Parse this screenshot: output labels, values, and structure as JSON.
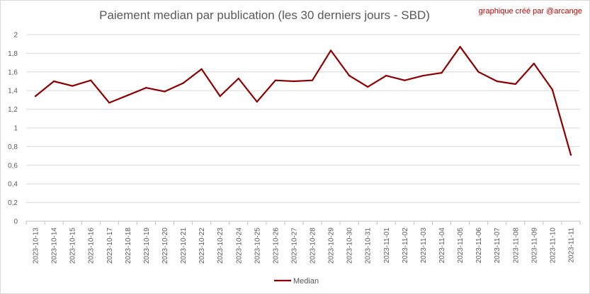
{
  "chart_data": {
    "type": "line",
    "title": "Paiement median par publication (les 30 derniers jours - SBD)",
    "credit": "graphique créé par @arcange",
    "xlabel": "",
    "ylabel": "",
    "ylim": [
      0,
      2
    ],
    "y_ticks": [
      "0",
      "0,2",
      "0,4",
      "0,6",
      "0,8",
      "1",
      "1,2",
      "1,4",
      "1,6",
      "1,8",
      "2"
    ],
    "y_tick_values": [
      0,
      0.2,
      0.4,
      0.6,
      0.8,
      1.0,
      1.2,
      1.4,
      1.6,
      1.8,
      2.0
    ],
    "grid": true,
    "legend": "bottom",
    "color": "#8b0000",
    "categories": [
      "2023-10-13",
      "2023-10-14",
      "2023-10-15",
      "2023-10-16",
      "2023-10-17",
      "2023-10-18",
      "2023-10-19",
      "2023-10-20",
      "2023-10-21",
      "2023-10-22",
      "2023-10-23",
      "2023-10-24",
      "2023-10-25",
      "2023-10-26",
      "2023-10-27",
      "2023-10-28",
      "2023-10-29",
      "2023-10-30",
      "2023-10-31",
      "2023-11-01",
      "2023-11-02",
      "2023-11-03",
      "2023-11-04",
      "2023-11-05",
      "2023-11-06",
      "2023-11-07",
      "2023-11-08",
      "2023-11-09",
      "2023-11-10",
      "2023-11-11"
    ],
    "series": [
      {
        "name": "Median",
        "values": [
          1.34,
          1.5,
          1.45,
          1.51,
          1.27,
          1.35,
          1.43,
          1.39,
          1.48,
          1.63,
          1.34,
          1.53,
          1.28,
          1.51,
          1.5,
          1.51,
          1.83,
          1.56,
          1.44,
          1.56,
          1.51,
          1.56,
          1.59,
          1.87,
          1.6,
          1.5,
          1.47,
          1.69,
          1.41,
          0.71
        ]
      }
    ]
  }
}
